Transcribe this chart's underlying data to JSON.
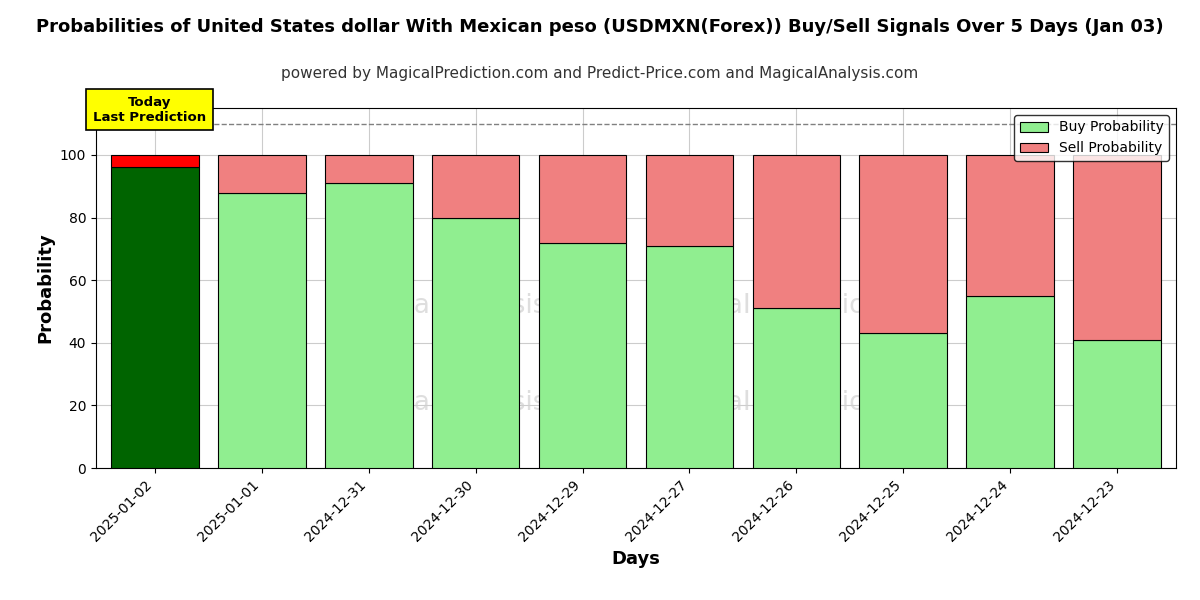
{
  "title": "Probabilities of United States dollar With Mexican peso (USDMXN(Forex)) Buy/Sell Signals Over 5 Days (Jan 03)",
  "subtitle": "powered by MagicalPrediction.com and Predict-Price.com and MagicalAnalysis.com",
  "xlabel": "Days",
  "ylabel": "Probability",
  "categories": [
    "2025-01-02",
    "2025-01-01",
    "2024-12-31",
    "2024-12-30",
    "2024-12-29",
    "2024-12-27",
    "2024-12-26",
    "2024-12-25",
    "2024-12-24",
    "2024-12-23"
  ],
  "buy_values": [
    96,
    88,
    91,
    80,
    72,
    71,
    51,
    43,
    55,
    41
  ],
  "sell_values": [
    4,
    12,
    9,
    20,
    28,
    29,
    49,
    57,
    45,
    59
  ],
  "first_bar_buy_color": "#006400",
  "first_bar_sell_color": "#ff0000",
  "other_buy_color": "#90EE90",
  "other_sell_color": "#F08080",
  "bar_edge_color": "#000000",
  "today_box_color": "#FFFF00",
  "today_box_text": "Today\nLast Prediction",
  "today_box_text_color": "#000000",
  "watermark_color": "#cccccc",
  "background_color": "#ffffff",
  "grid_color": "#cccccc",
  "ylim": [
    0,
    115
  ],
  "yticks": [
    0,
    20,
    40,
    60,
    80,
    100
  ],
  "dashed_line_y": 110,
  "legend_buy_label": "Buy Probability",
  "legend_sell_label": "Sell Probability",
  "title_fontsize": 13,
  "subtitle_fontsize": 11,
  "axis_label_fontsize": 13,
  "bar_width": 0.82
}
